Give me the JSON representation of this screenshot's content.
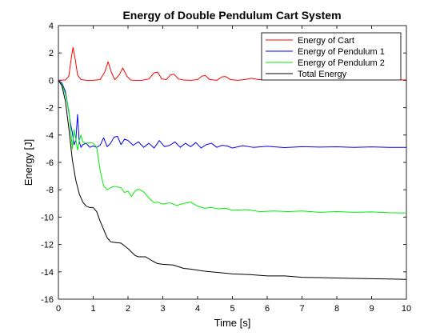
{
  "chart_data": {
    "type": "line",
    "title": "Energy of Double Pendulum Cart System",
    "xlabel": "Time [s]",
    "ylabel": "Energy [J]",
    "xlim": [
      0,
      10
    ],
    "ylim": [
      -16,
      4
    ],
    "xticks": [
      0,
      1,
      2,
      3,
      4,
      5,
      6,
      7,
      8,
      9,
      10
    ],
    "yticks": [
      -16,
      -14,
      -12,
      -10,
      -8,
      -6,
      -4,
      -2,
      0,
      2,
      4
    ],
    "grid": false,
    "legend_position": "top-right",
    "series": [
      {
        "name": "Energy of Cart",
        "color": "#ff0000",
        "x": [
          0,
          0.2,
          0.3,
          0.38,
          0.42,
          0.48,
          0.55,
          0.65,
          0.8,
          1.0,
          1.2,
          1.33,
          1.43,
          1.52,
          1.62,
          1.75,
          1.85,
          1.97,
          2.08,
          2.2,
          2.4,
          2.6,
          2.75,
          2.85,
          2.97,
          3.1,
          3.22,
          3.32,
          3.45,
          3.6,
          3.8,
          4.0,
          4.12,
          4.22,
          4.35,
          4.55,
          4.7,
          4.8,
          4.95,
          5.15,
          5.35,
          5.55,
          5.75,
          6.0,
          6.5,
          7.0,
          7.5,
          8.0,
          8.5,
          9.0,
          9.5,
          10.0
        ],
        "y": [
          0,
          0.02,
          0.3,
          1.8,
          2.4,
          1.6,
          0.4,
          0.05,
          0.0,
          0.0,
          0.05,
          0.6,
          1.35,
          0.6,
          0.05,
          0.4,
          0.9,
          0.3,
          0.02,
          0.0,
          0.0,
          0.1,
          0.55,
          0.6,
          0.1,
          0.05,
          0.4,
          0.45,
          0.1,
          0.02,
          0.0,
          0.05,
          0.3,
          0.35,
          0.05,
          0.0,
          0.25,
          0.28,
          0.05,
          0.0,
          0.05,
          0.15,
          0.05,
          0.05,
          0.08,
          0.05,
          0.03,
          0.05,
          0.03,
          0.05,
          0.03,
          0.03
        ]
      },
      {
        "name": "Energy of Pendulum 1",
        "color": "#0000ff",
        "x": [
          0,
          0.1,
          0.2,
          0.28,
          0.35,
          0.4,
          0.45,
          0.5,
          0.55,
          0.6,
          0.65,
          0.7,
          0.8,
          0.9,
          1.0,
          1.1,
          1.2,
          1.3,
          1.4,
          1.5,
          1.6,
          1.7,
          1.8,
          1.9,
          2.0,
          2.15,
          2.3,
          2.45,
          2.6,
          2.75,
          2.9,
          3.05,
          3.2,
          3.35,
          3.5,
          3.65,
          3.8,
          3.95,
          4.1,
          4.25,
          4.4,
          4.55,
          4.7,
          4.85,
          5.0,
          5.3,
          5.6,
          6.0,
          6.5,
          7.0,
          7.5,
          8.0,
          8.5,
          9.0,
          9.5,
          10.0
        ],
        "y": [
          0,
          -0.2,
          -0.8,
          -2.0,
          -3.2,
          -3.8,
          -4.7,
          -4.4,
          -2.5,
          -4.5,
          -4.9,
          -4.7,
          -4.6,
          -4.9,
          -4.8,
          -4.9,
          -4.75,
          -4.2,
          -4.85,
          -4.6,
          -4.15,
          -4.1,
          -4.7,
          -4.3,
          -4.4,
          -4.75,
          -4.5,
          -4.9,
          -4.6,
          -4.95,
          -4.4,
          -4.85,
          -4.75,
          -4.5,
          -4.9,
          -4.6,
          -4.85,
          -4.55,
          -4.95,
          -4.7,
          -4.6,
          -4.9,
          -4.75,
          -4.8,
          -4.95,
          -4.78,
          -4.9,
          -4.82,
          -4.92,
          -4.85,
          -4.88,
          -4.86,
          -4.9,
          -4.87,
          -4.9,
          -4.9
        ]
      },
      {
        "name": "Energy of Pendulum 2",
        "color": "#00ee00",
        "x": [
          0,
          0.1,
          0.2,
          0.3,
          0.35,
          0.4,
          0.45,
          0.5,
          0.55,
          0.6,
          0.65,
          0.7,
          0.8,
          0.9,
          1.0,
          1.1,
          1.2,
          1.3,
          1.4,
          1.5,
          1.6,
          1.7,
          1.8,
          1.9,
          2.0,
          2.1,
          2.2,
          2.3,
          2.45,
          2.6,
          2.75,
          2.85,
          3.0,
          3.2,
          3.4,
          3.6,
          3.8,
          4.0,
          4.2,
          4.4,
          4.6,
          4.8,
          5.0,
          5.4,
          5.8,
          6.2,
          6.6,
          7.0,
          7.5,
          8.0,
          8.5,
          9.0,
          9.5,
          10.0
        ],
        "y": [
          0,
          -0.3,
          -1.0,
          -2.2,
          -3.5,
          -5.0,
          -3.6,
          -4.3,
          -5.1,
          -4.4,
          -4.0,
          -4.5,
          -4.6,
          -4.55,
          -4.6,
          -4.9,
          -6.6,
          -7.7,
          -8.0,
          -7.85,
          -7.75,
          -7.8,
          -7.85,
          -8.2,
          -8.1,
          -8.5,
          -8.1,
          -7.95,
          -8.15,
          -8.6,
          -8.95,
          -8.9,
          -9.05,
          -8.95,
          -9.15,
          -9.0,
          -8.9,
          -9.2,
          -9.35,
          -9.3,
          -9.4,
          -9.35,
          -9.5,
          -9.45,
          -9.6,
          -9.55,
          -9.6,
          -9.55,
          -9.65,
          -9.6,
          -9.65,
          -9.62,
          -9.68,
          -9.7
        ]
      },
      {
        "name": "Total Energy",
        "color": "#000000",
        "x": [
          0,
          0.1,
          0.2,
          0.3,
          0.4,
          0.5,
          0.6,
          0.7,
          0.8,
          0.9,
          1.0,
          1.1,
          1.2,
          1.3,
          1.4,
          1.5,
          1.6,
          1.8,
          2.0,
          2.2,
          2.3,
          2.5,
          2.7,
          2.85,
          3.0,
          3.3,
          3.6,
          3.8,
          4.2,
          4.6,
          5.0,
          5.5,
          6.0,
          6.5,
          7.0,
          7.5,
          8.0,
          8.5,
          9.0,
          9.5,
          10.0
        ],
        "y": [
          0,
          -0.4,
          -1.5,
          -3.5,
          -5.8,
          -7.3,
          -8.3,
          -8.9,
          -9.2,
          -9.3,
          -9.3,
          -9.6,
          -10.3,
          -10.9,
          -11.5,
          -11.8,
          -11.85,
          -11.9,
          -12.3,
          -12.8,
          -12.9,
          -12.9,
          -13.2,
          -13.4,
          -13.45,
          -13.5,
          -13.75,
          -13.8,
          -13.95,
          -14.05,
          -14.15,
          -14.2,
          -14.3,
          -14.3,
          -14.4,
          -14.42,
          -14.45,
          -14.48,
          -14.5,
          -14.52,
          -14.55
        ]
      }
    ]
  }
}
